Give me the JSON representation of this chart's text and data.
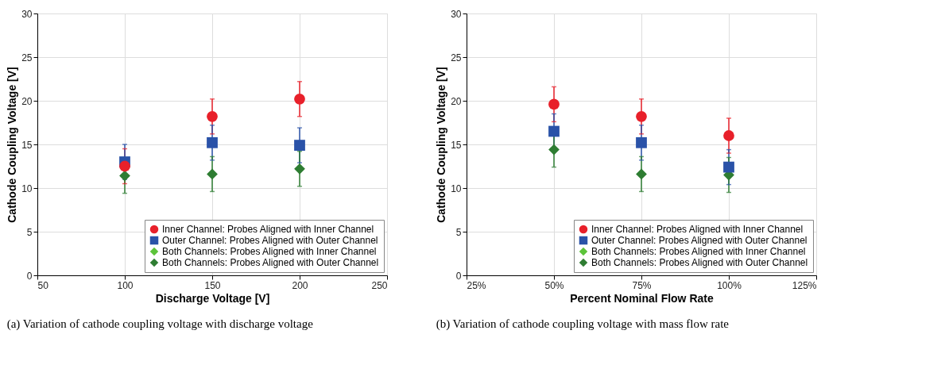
{
  "chart_data": [
    {
      "type": "scatter",
      "xlabel": "Discharge Voltage [V]",
      "ylabel": "Cathode Coupling Voltage [V]",
      "annotations": [
        "(a)  Variation of cathode coupling voltage with discharge voltage"
      ],
      "x": [
        100,
        150,
        200
      ],
      "xlim": [
        50,
        250
      ],
      "xticks": [
        50,
        100,
        150,
        200,
        250
      ],
      "ylim": [
        0,
        30
      ],
      "yticks": [
        0,
        5,
        10,
        15,
        20,
        25,
        30
      ],
      "grid": true,
      "legend": "bottom right",
      "series": [
        {
          "name": "Inner Channel: Probes Aligned with Inner Channel",
          "color": "#e8202a",
          "marker": "circle",
          "values": [
            12.5,
            18.2,
            20.2
          ],
          "errors": [
            2,
            2,
            2
          ]
        },
        {
          "name": "Outer Channel: Probes Aligned with Outer Channel",
          "color": "#2a52a8",
          "marker": "square",
          "values": [
            13.0,
            15.2,
            14.9
          ],
          "errors": [
            2,
            2,
            2
          ]
        },
        {
          "name": "Both Channels: Probes Aligned with Inner Channel",
          "color": "#5cc43a",
          "marker": "diamond",
          "values": [
            null,
            null,
            null
          ]
        },
        {
          "name": "Both Channels: Probes Aligned with Outer Channel",
          "color": "#2e7d32",
          "marker": "diamond",
          "values": [
            11.4,
            11.6,
            12.2
          ],
          "errors": [
            2,
            2,
            2
          ]
        }
      ]
    },
    {
      "type": "scatter",
      "xlabel": "Percent Nominal Flow Rate",
      "ylabel": "Cathode Coupling Voltage [V]",
      "annotations": [
        "(b)  Variation of cathode coupling voltage with mass flow rate"
      ],
      "x": [
        50,
        75,
        100
      ],
      "xlim": [
        25,
        125
      ],
      "xticks": [
        {
          "value": 25,
          "label": "25%"
        },
        {
          "value": 50,
          "label": "50%"
        },
        {
          "value": 75,
          "label": "75%"
        },
        {
          "value": 100,
          "label": "100%"
        },
        {
          "value": 125,
          "label": "125%"
        }
      ],
      "ylim": [
        0,
        30
      ],
      "yticks": [
        0,
        5,
        10,
        15,
        20,
        25,
        30
      ],
      "grid": true,
      "legend": "bottom right",
      "series": [
        {
          "name": "Inner Channel: Probes Aligned with Inner Channel",
          "color": "#e8202a",
          "marker": "circle",
          "values": [
            19.6,
            18.2,
            16.0
          ],
          "errors": [
            2,
            2,
            2
          ]
        },
        {
          "name": "Outer Channel: Probes Aligned with Outer Channel",
          "color": "#2a52a8",
          "marker": "square",
          "values": [
            16.5,
            15.2,
            12.4
          ],
          "errors": [
            2,
            2,
            2
          ]
        },
        {
          "name": "Both Channels: Probes Aligned with Inner Channel",
          "color": "#5cc43a",
          "marker": "diamond",
          "values": [
            null,
            null,
            null
          ]
        },
        {
          "name": "Both Channels: Probes Aligned with Outer Channel",
          "color": "#2e7d32",
          "marker": "diamond",
          "values": [
            14.4,
            11.6,
            11.5
          ],
          "errors": [
            2,
            2,
            2
          ]
        }
      ]
    }
  ]
}
